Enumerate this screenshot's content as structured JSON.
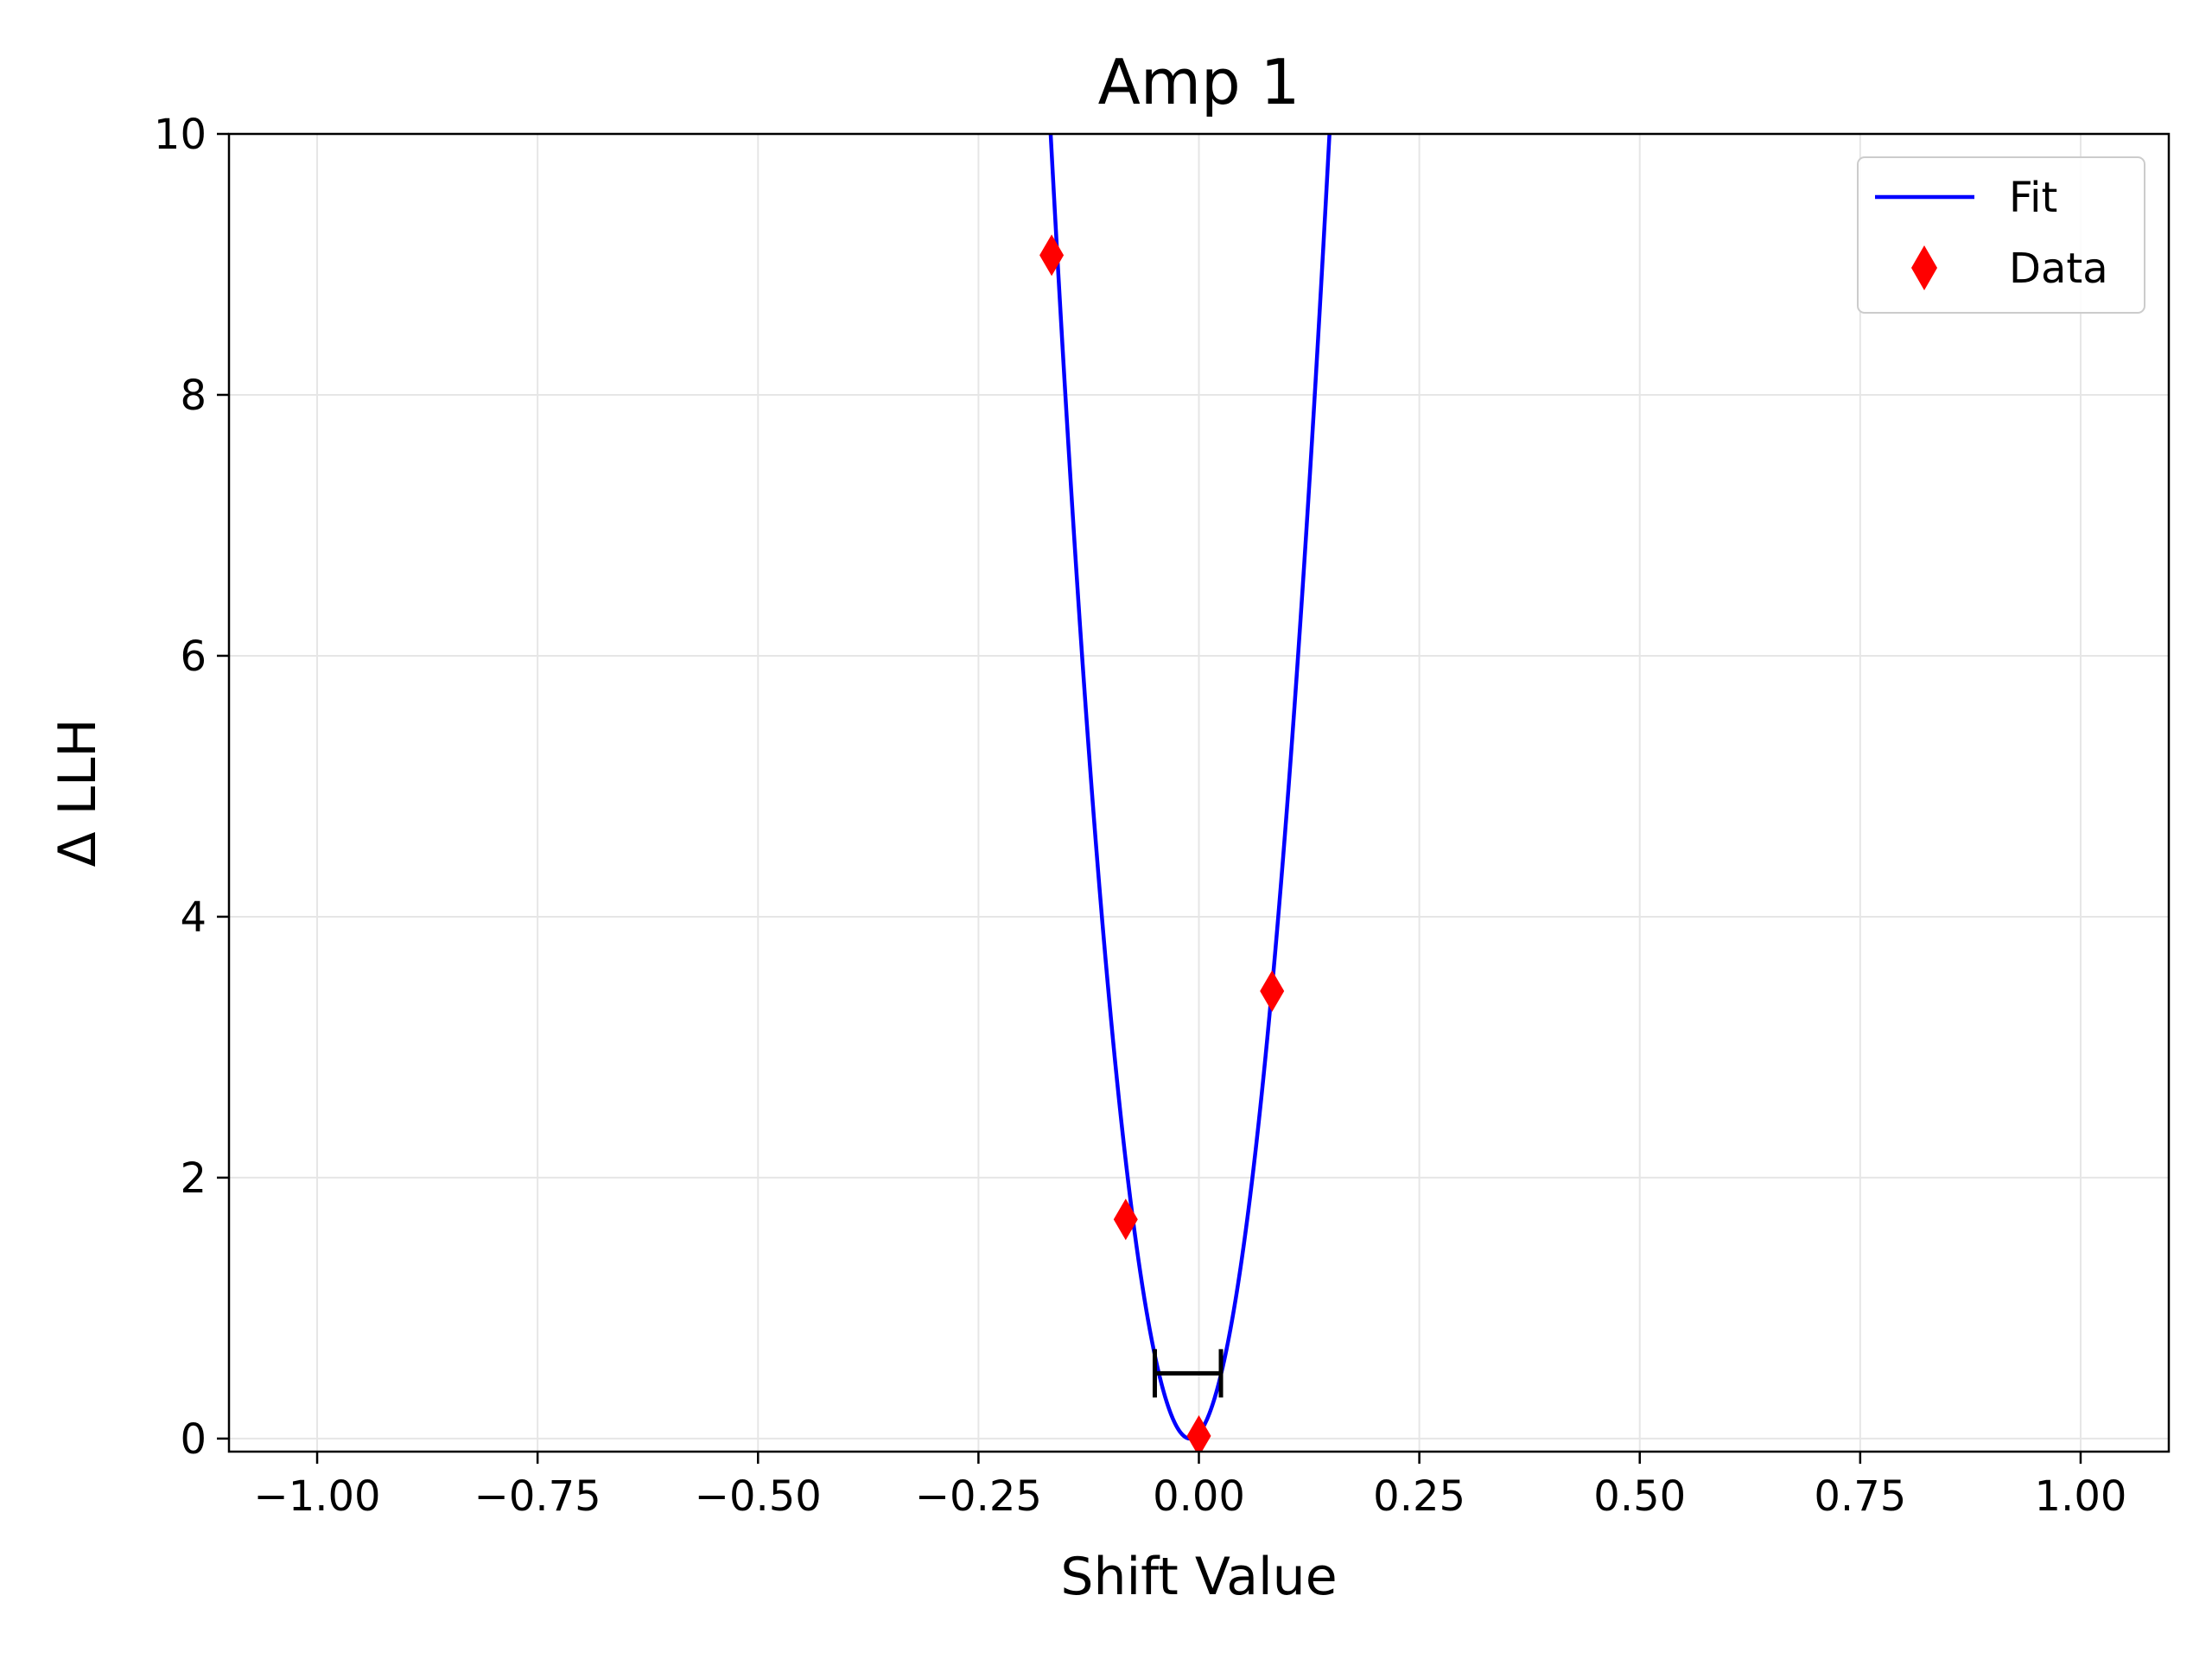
{
  "chart_data": {
    "type": "line",
    "title": "Amp 1",
    "xlabel": "Shift Value",
    "ylabel": "Δ LLH",
    "xlim": [
      -1.1,
      1.1
    ],
    "ylim": [
      -0.1,
      10
    ],
    "xticks": [
      -1.0,
      -0.75,
      -0.5,
      -0.25,
      0.0,
      0.25,
      0.5,
      0.75,
      1.0
    ],
    "xtick_labels": [
      "−1.00",
      "−0.75",
      "−0.50",
      "−0.25",
      "0.00",
      "0.25",
      "0.50",
      "0.75",
      "1.00"
    ],
    "yticks": [
      0,
      2,
      4,
      6,
      8,
      10
    ],
    "ytick_labels": [
      "0",
      "2",
      "4",
      "6",
      "8",
      "10"
    ],
    "grid": true,
    "legend_position": "top-right",
    "series": [
      {
        "name": "Fit",
        "type": "line",
        "color": "#0000ff",
        "model": "parabola",
        "center": -0.01,
        "curvature": 400
      },
      {
        "name": "Data",
        "type": "scatter",
        "marker": "diamond",
        "color": "#ff0000",
        "x": [
          -0.167,
          -0.083,
          0.0,
          0.083
        ],
        "y": [
          9.07,
          1.68,
          0.02,
          3.43
        ]
      }
    ],
    "interval": {
      "color": "#000000",
      "x_min": -0.05,
      "x_max": 0.025,
      "y": 0.5
    }
  }
}
